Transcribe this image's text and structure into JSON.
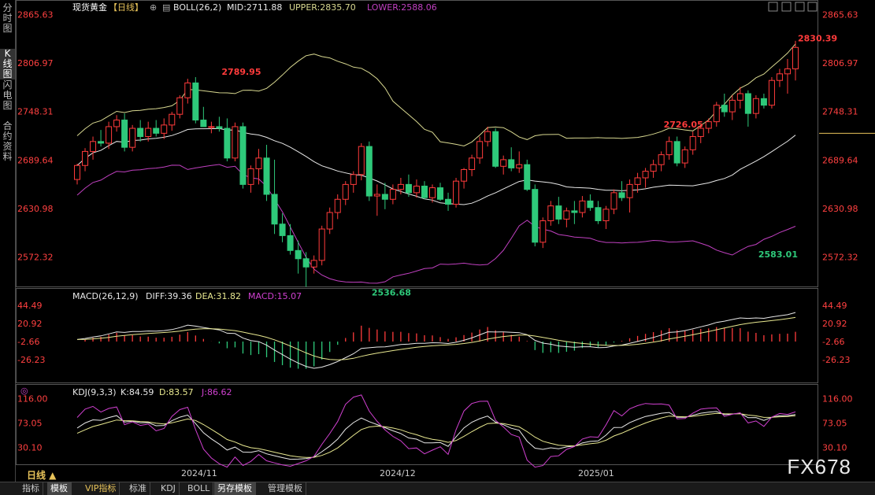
{
  "sidebar": [
    {
      "label": "分时图",
      "active": false
    },
    {
      "label": "K线图",
      "active": true
    },
    {
      "label": "闪电图",
      "active": false
    },
    {
      "label": "合约资料",
      "active": false
    }
  ],
  "header": {
    "instrument": "现货黄金",
    "period_tag": "【日线】",
    "boll_label": "BOLL(26,2)",
    "mid_label": "MID:2711.88",
    "upper_label": "UPPER:2835.70",
    "lower_label": "LOWER:2588.06"
  },
  "macd_header": {
    "label": "MACD(26,12,9)",
    "diff": "DIFF:39.36",
    "dea": "DEA:31.82",
    "macd": "MACD:15.07"
  },
  "kdj_header": {
    "label": "KDJ(9,3,3)",
    "k": "K:84.59",
    "d": "D:83.57",
    "j": "J:86.62"
  },
  "colors": {
    "up": "#ff3b3b",
    "down": "#2ec97a",
    "upper": "#d8d890",
    "mid": "#e8e8e8",
    "lower": "#c040c0",
    "diff": "#e8e8e8",
    "dea": "#e8e890",
    "kline": "#e8e8e8",
    "dline": "#e8e890",
    "jline": "#d040d0",
    "axis_red": "#ff4040",
    "hline": "#e8c35a"
  },
  "chart_data": [
    {
      "type": "candlestick",
      "yaxis_labels": [
        "2865.63",
        "2806.97",
        "2748.31",
        "2689.64",
        "2630.98",
        "2572.32"
      ],
      "ylim": [
        2545,
        2872
      ],
      "annotations": [
        {
          "text": "2789.95",
          "index": 18,
          "value": 2789.95,
          "color": "up"
        },
        {
          "text": "2536.68",
          "index": 37,
          "value": 2536.68,
          "color": "down"
        },
        {
          "text": "2726.05",
          "index": 74,
          "value": 2726.05,
          "color": "up"
        },
        {
          "text": "2583.01",
          "index": 86,
          "value": 2583.01,
          "color": "down"
        },
        {
          "text": "2830.39",
          "index": 140,
          "value": 2830.39,
          "color": "up"
        }
      ],
      "horizontal_line": {
        "value": 2722,
        "from_index": 115
      },
      "candles": [
        [
          2666,
          2685,
          2660,
          2683
        ],
        [
          2683,
          2704,
          2676,
          2700
        ],
        [
          2700,
          2718,
          2690,
          2712
        ],
        [
          2712,
          2726,
          2706,
          2710
        ],
        [
          2710,
          2736,
          2703,
          2730
        ],
        [
          2730,
          2744,
          2724,
          2738
        ],
        [
          2738,
          2746,
          2700,
          2705
        ],
        [
          2705,
          2732,
          2700,
          2728
        ],
        [
          2728,
          2738,
          2712,
          2718
        ],
        [
          2718,
          2736,
          2712,
          2728
        ],
        [
          2728,
          2738,
          2718,
          2722
        ],
        [
          2722,
          2740,
          2715,
          2732
        ],
        [
          2732,
          2748,
          2725,
          2745
        ],
        [
          2745,
          2768,
          2740,
          2765
        ],
        [
          2765,
          2788,
          2758,
          2783
        ],
        [
          2783,
          2790,
          2734,
          2738
        ],
        [
          2738,
          2754,
          2730,
          2730
        ],
        [
          2730,
          2736,
          2722,
          2730
        ],
        [
          2730,
          2742,
          2724,
          2728
        ],
        [
          2728,
          2740,
          2688,
          2692
        ],
        [
          2692,
          2735,
          2688,
          2730
        ],
        [
          2730,
          2735,
          2655,
          2660
        ],
        [
          2660,
          2683,
          2650,
          2679
        ],
        [
          2679,
          2703,
          2660,
          2692
        ],
        [
          2692,
          2708,
          2640,
          2648
        ],
        [
          2648,
          2690,
          2600,
          2612
        ],
        [
          2612,
          2625,
          2590,
          2598
        ],
        [
          2598,
          2612,
          2575,
          2580
        ],
        [
          2580,
          2592,
          2552,
          2570
        ],
        [
          2570,
          2578,
          2536,
          2560
        ],
        [
          2560,
          2574,
          2552,
          2568
        ],
        [
          2568,
          2610,
          2562,
          2606
        ],
        [
          2606,
          2632,
          2600,
          2626
        ],
        [
          2626,
          2648,
          2618,
          2642
        ],
        [
          2642,
          2664,
          2635,
          2660
        ],
        [
          2660,
          2676,
          2650,
          2672
        ],
        [
          2672,
          2710,
          2665,
          2706
        ],
        [
          2706,
          2712,
          2640,
          2646
        ],
        [
          2646,
          2660,
          2622,
          2648
        ],
        [
          2648,
          2662,
          2630,
          2642
        ],
        [
          2642,
          2660,
          2636,
          2654
        ],
        [
          2654,
          2668,
          2648,
          2660
        ],
        [
          2660,
          2672,
          2645,
          2650
        ],
        [
          2650,
          2666,
          2644,
          2658
        ],
        [
          2658,
          2664,
          2642,
          2644
        ],
        [
          2644,
          2660,
          2638,
          2656
        ],
        [
          2656,
          2662,
          2640,
          2642
        ],
        [
          2642,
          2650,
          2628,
          2636
        ],
        [
          2636,
          2668,
          2632,
          2664
        ],
        [
          2664,
          2680,
          2655,
          2678
        ],
        [
          2678,
          2696,
          2670,
          2692
        ],
        [
          2692,
          2718,
          2685,
          2712
        ],
        [
          2712,
          2730,
          2706,
          2724
        ],
        [
          2724,
          2728,
          2680,
          2682
        ],
        [
          2682,
          2695,
          2672,
          2690
        ],
        [
          2690,
          2705,
          2676,
          2680
        ],
        [
          2680,
          2700,
          2674,
          2684
        ],
        [
          2684,
          2690,
          2652,
          2654
        ],
        [
          2654,
          2660,
          2585,
          2590
        ],
        [
          2590,
          2620,
          2583,
          2616
        ],
        [
          2616,
          2640,
          2610,
          2634
        ],
        [
          2634,
          2645,
          2612,
          2618
        ],
        [
          2618,
          2632,
          2608,
          2628
        ],
        [
          2628,
          2640,
          2612,
          2626
        ],
        [
          2626,
          2646,
          2620,
          2640
        ],
        [
          2640,
          2648,
          2628,
          2632
        ],
        [
          2632,
          2640,
          2612,
          2616
        ],
        [
          2616,
          2634,
          2606,
          2630
        ],
        [
          2630,
          2654,
          2624,
          2650
        ],
        [
          2650,
          2664,
          2640,
          2644
        ],
        [
          2644,
          2666,
          2626,
          2660
        ],
        [
          2660,
          2674,
          2650,
          2668
        ],
        [
          2668,
          2680,
          2656,
          2676
        ],
        [
          2676,
          2690,
          2668,
          2684
        ],
        [
          2684,
          2700,
          2676,
          2696
        ],
        [
          2696,
          2718,
          2690,
          2712
        ],
        [
          2712,
          2718,
          2682,
          2686
        ],
        [
          2686,
          2706,
          2680,
          2702
        ],
        [
          2702,
          2724,
          2696,
          2718
        ],
        [
          2718,
          2730,
          2710,
          2728
        ],
        [
          2728,
          2740,
          2722,
          2736
        ],
        [
          2736,
          2760,
          2730,
          2756
        ],
        [
          2756,
          2770,
          2742,
          2748
        ],
        [
          2748,
          2768,
          2738,
          2762
        ],
        [
          2762,
          2778,
          2752,
          2770
        ],
        [
          2770,
          2774,
          2730,
          2746
        ],
        [
          2746,
          2768,
          2740,
          2764
        ],
        [
          2764,
          2770,
          2752,
          2756
        ],
        [
          2756,
          2790,
          2752,
          2786
        ],
        [
          2786,
          2800,
          2778,
          2794
        ],
        [
          2794,
          2812,
          2770,
          2800
        ],
        [
          2800,
          2834,
          2786,
          2826
        ]
      ]
    },
    {
      "type": "bar_line",
      "yaxis_labels": [
        "44.49",
        "20.92",
        "-2.66",
        "-26.23"
      ],
      "ylim": [
        -50,
        55
      ]
    },
    {
      "type": "line",
      "yaxis_labels": [
        "116.00",
        "73.05",
        "30.10"
      ],
      "ylim": [
        0,
        125
      ]
    }
  ],
  "xaxis_labels": [
    "2024/11",
    "2024/12",
    "2025/01"
  ],
  "period_label": "日线 ▲",
  "bottom_tabs": [
    {
      "label": "指标",
      "active": false,
      "vip": false
    },
    {
      "label": "模板",
      "active": true,
      "vip": false
    },
    {
      "label": "VIP指标",
      "active": false,
      "vip": true
    },
    {
      "label": "标准",
      "active": false,
      "vip": false
    },
    {
      "label": "KDJ",
      "active": false,
      "vip": false
    },
    {
      "label": "BOLL",
      "active": false,
      "vip": false
    },
    {
      "label": "另存模板",
      "active": true,
      "vip": false
    },
    {
      "label": "管理模板",
      "active": false,
      "vip": false
    }
  ],
  "watermark": "FX678"
}
